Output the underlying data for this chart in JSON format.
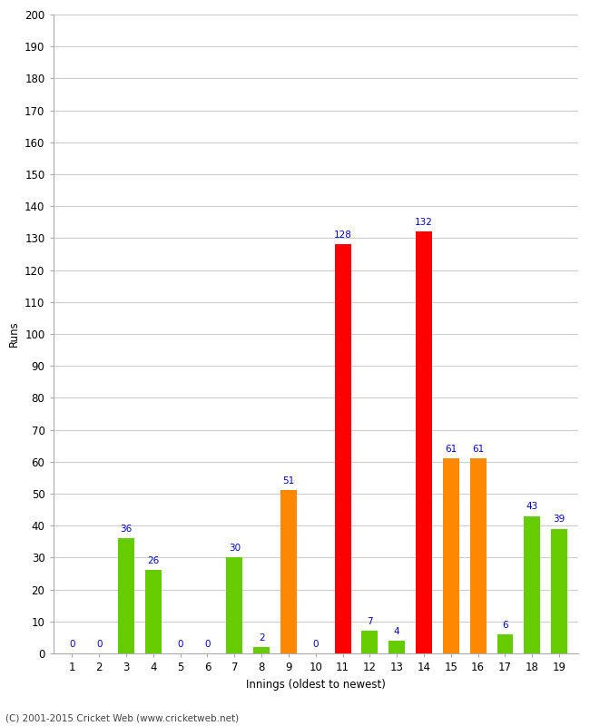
{
  "innings": [
    1,
    2,
    3,
    4,
    5,
    6,
    7,
    8,
    9,
    10,
    11,
    12,
    13,
    14,
    15,
    16,
    17,
    18,
    19
  ],
  "runs": [
    0,
    0,
    36,
    26,
    0,
    0,
    30,
    2,
    51,
    0,
    128,
    7,
    4,
    132,
    61,
    61,
    6,
    43,
    39
  ],
  "colors": [
    "#66cc00",
    "#66cc00",
    "#66cc00",
    "#66cc00",
    "#66cc00",
    "#66cc00",
    "#66cc00",
    "#66cc00",
    "#ff8800",
    "#ff8800",
    "#ff0000",
    "#66cc00",
    "#66cc00",
    "#ff0000",
    "#ff8800",
    "#ff8800",
    "#66cc00",
    "#66cc00",
    "#66cc00"
  ],
  "xlabel": "Innings (oldest to newest)",
  "ylabel": "Runs",
  "ylim": [
    0,
    200
  ],
  "yticks": [
    0,
    10,
    20,
    30,
    40,
    50,
    60,
    70,
    80,
    90,
    100,
    110,
    120,
    130,
    140,
    150,
    160,
    170,
    180,
    190,
    200
  ],
  "label_color": "#0000cc",
  "background_color": "#ffffff",
  "footer": "(C) 2001-2015 Cricket Web (www.cricketweb.net)"
}
